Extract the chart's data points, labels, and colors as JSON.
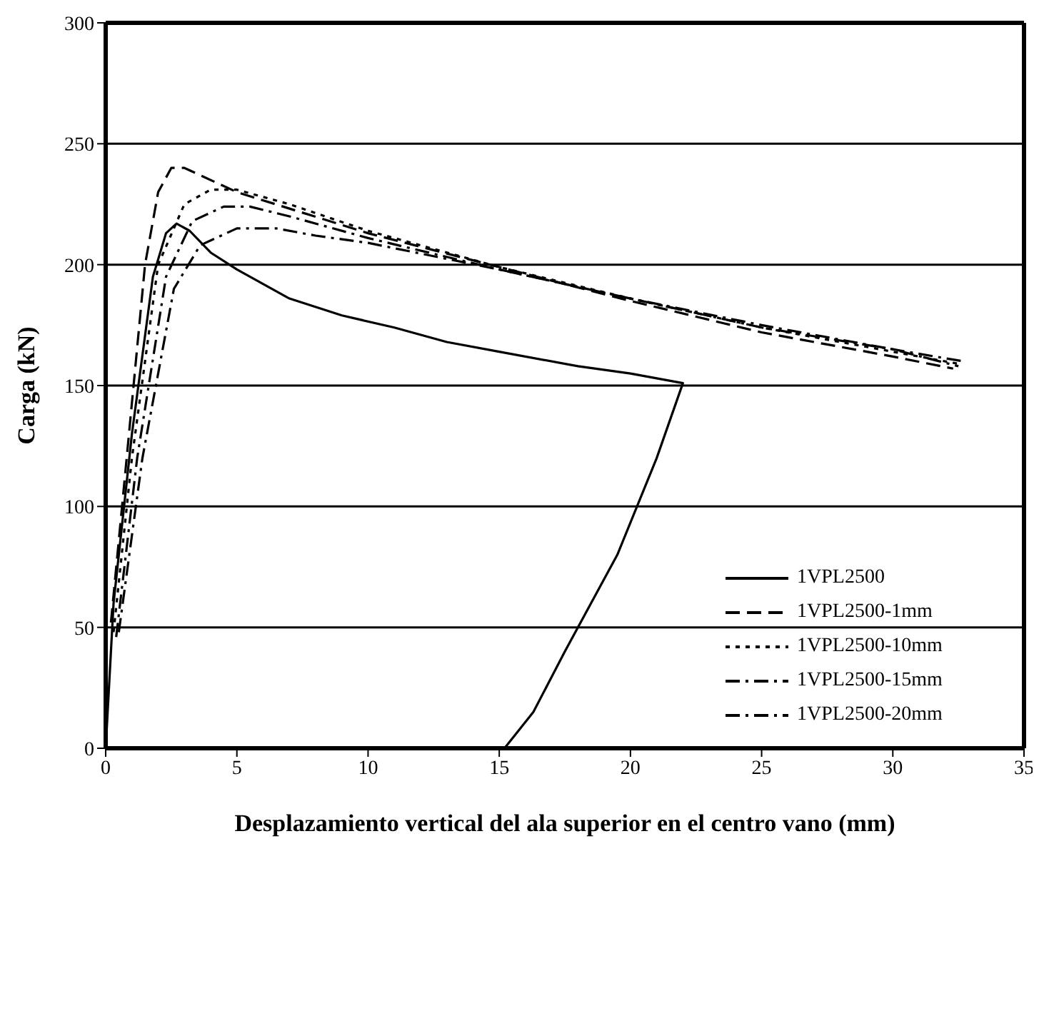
{
  "chart_data": {
    "type": "line",
    "xlabel": "Desplazamiento vertical del ala superior en el centro vano (mm)",
    "ylabel": "Carga (kN)",
    "xlim": [
      0,
      35
    ],
    "xticks": [
      0,
      5,
      10,
      15,
      20,
      25,
      30,
      35
    ],
    "ylim": [
      0,
      300
    ],
    "yticks": [
      0,
      50,
      100,
      150,
      200,
      250,
      300
    ],
    "grid": "y",
    "legend": "bottom right",
    "marker": "none",
    "series": [
      {
        "name": "1VPL2500",
        "color": "#000000",
        "line_style": "solid",
        "x": [
          0,
          0.3,
          1,
          1.8,
          2.3,
          2.7,
          3.2,
          4,
          5,
          7,
          9,
          11,
          13,
          15,
          18,
          20,
          22,
          21,
          19.5,
          17.5,
          16.3,
          15.2
        ],
        "values": [
          0,
          60,
          130,
          195,
          213,
          217,
          214,
          205,
          198,
          186,
          179,
          174,
          168,
          164,
          158,
          155,
          151,
          120,
          80,
          40,
          15,
          0
        ]
      },
      {
        "name": "1VPL2500-1mm",
        "color": "#000000",
        "line_style": "dashed",
        "x": [
          0.2,
          0.8,
          1.5,
          2,
          2.5,
          3,
          5,
          10,
          15,
          20,
          25,
          30,
          32.3
        ],
        "values": [
          52,
          120,
          200,
          230,
          240,
          240,
          230,
          213,
          199,
          185,
          172,
          162,
          157
        ]
      },
      {
        "name": "1VPL2500-10mm",
        "color": "#000000",
        "line_style": "dotted",
        "x": [
          0.3,
          1,
          2,
          3,
          4,
          5,
          7,
          10,
          15,
          20,
          25,
          30,
          32.5
        ],
        "values": [
          48,
          120,
          200,
          225,
          231,
          231,
          225,
          214,
          199,
          186,
          174,
          164,
          159
        ]
      },
      {
        "name": "1VPL2500-15mm",
        "color": "#000000",
        "line_style": "dashdot",
        "x": [
          0.4,
          1.2,
          2.3,
          3.3,
          4.5,
          5.5,
          7,
          10,
          15,
          20,
          25,
          30,
          32.7
        ],
        "values": [
          46,
          120,
          195,
          218,
          224,
          224,
          220,
          211,
          198,
          186,
          174,
          165,
          160
        ]
      },
      {
        "name": "1VPL2500-20mm",
        "color": "#000000",
        "line_style": "dashdot",
        "x": [
          0.5,
          1.4,
          2.6,
          3.6,
          5,
          6.5,
          8,
          10,
          15,
          20,
          25,
          30,
          32.5
        ],
        "values": [
          48,
          120,
          190,
          208,
          215,
          215,
          212,
          209,
          198,
          186,
          175,
          165,
          158
        ]
      }
    ]
  }
}
